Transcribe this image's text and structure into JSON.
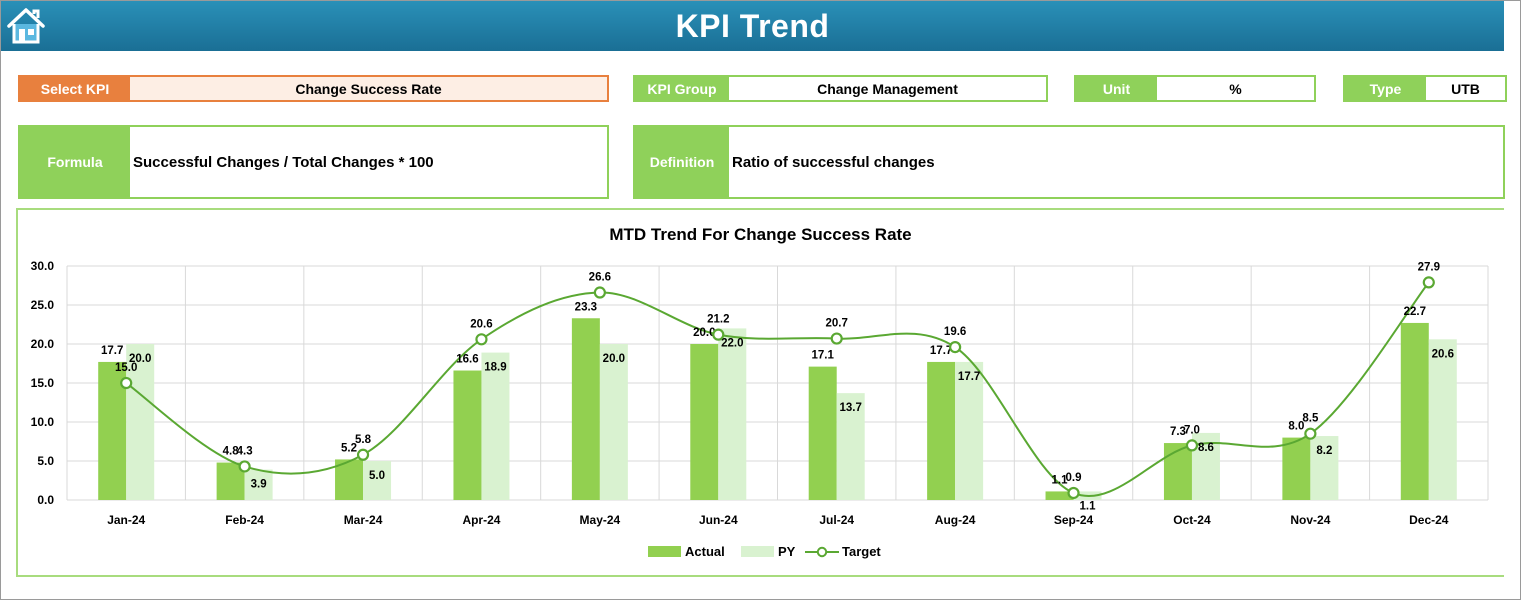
{
  "header": {
    "title": "KPI Trend",
    "home_icon": "home-icon"
  },
  "selectors": {
    "select_kpi_label": "Select KPI",
    "select_kpi_value": "Change Success Rate",
    "kpi_group_label": "KPI Group",
    "kpi_group_value": "Change Management",
    "unit_label": "Unit",
    "unit_value": "%",
    "type_label": "Type",
    "type_value": "UTB"
  },
  "details": {
    "formula_label": "Formula",
    "formula_value": "Successful Changes / Total Changes * 100",
    "definition_label": "Definition",
    "definition_value": "Ratio of successful changes"
  },
  "colors": {
    "actual": "#92d050",
    "py": "#d9f2d0",
    "target": "#5aa832",
    "banner": "#1f7ba5",
    "select_accent": "#e8803e"
  },
  "chart_data": {
    "type": "bar",
    "title": "MTD Trend For Change Success Rate",
    "categories": [
      "Jan-24",
      "Feb-24",
      "Mar-24",
      "Apr-24",
      "May-24",
      "Jun-24",
      "Jul-24",
      "Aug-24",
      "Sep-24",
      "Oct-24",
      "Nov-24",
      "Dec-24"
    ],
    "series": [
      {
        "name": "Actual",
        "type": "bar",
        "values": [
          17.7,
          4.8,
          5.2,
          16.6,
          23.3,
          20.0,
          17.1,
          17.7,
          1.1,
          7.3,
          8.0,
          22.7
        ]
      },
      {
        "name": "PY",
        "type": "bar",
        "values": [
          20.0,
          3.9,
          5.0,
          18.9,
          20.0,
          22.0,
          13.7,
          17.7,
          1.1,
          8.6,
          8.2,
          20.6
        ]
      },
      {
        "name": "Target",
        "type": "line",
        "smooth": true,
        "values": [
          15.0,
          4.3,
          5.8,
          20.6,
          26.6,
          21.2,
          20.7,
          19.6,
          0.9,
          7.0,
          8.5,
          27.9
        ]
      }
    ],
    "ylim": [
      0,
      30
    ],
    "yticks": [
      "0.0",
      "5.0",
      "10.0",
      "15.0",
      "20.0",
      "25.0",
      "30.0"
    ],
    "grid": true,
    "legend": "bottom"
  }
}
